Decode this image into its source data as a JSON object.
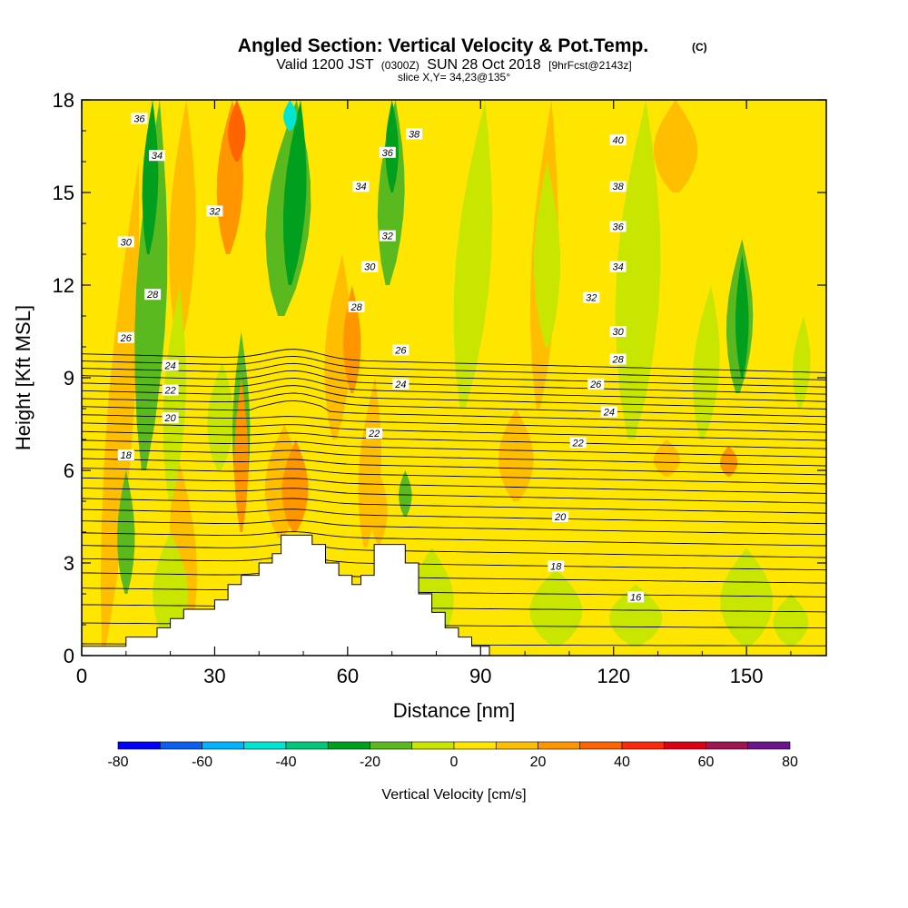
{
  "title": {
    "main": "Angled Section: Vertical Velocity & Pot.Temp.",
    "copyright": "(C)",
    "valid_prefix": "Valid 1200 JST",
    "valid_utc": "(0300Z)",
    "valid_date": "SUN 28 Oct 2018",
    "forecast": "[9hrFcst@2143z]",
    "slice": "slice X,Y= 34,23@135°"
  },
  "chart_data": {
    "type": "heatmap",
    "xlabel": "Distance [nm]",
    "ylabel": "Height [Kft MSL]",
    "xlim": [
      0,
      168
    ],
    "ylim": [
      0,
      18
    ],
    "x_ticks": [
      0,
      30,
      60,
      90,
      120,
      150
    ],
    "y_ticks": [
      0,
      3,
      6,
      9,
      12,
      15,
      18
    ],
    "colorbar": {
      "label": "Vertical Velocity [cm/s]",
      "ticks": [
        -80,
        -60,
        -40,
        -20,
        0,
        20,
        40,
        60,
        80
      ],
      "bins": [
        -80,
        -70,
        -60,
        -50,
        -40,
        -30,
        -20,
        -10,
        0,
        10,
        20,
        30,
        40,
        50,
        60,
        70,
        80
      ],
      "colors": [
        "#0000ff",
        "#0a5ef0",
        "#00b4ff",
        "#00e6d2",
        "#00c878",
        "#00a01e",
        "#5ab91e",
        "#c8e600",
        "#ffe600",
        "#ffbe00",
        "#ff9600",
        "#ff6400",
        "#ff280a",
        "#dc0014",
        "#a01450",
        "#6e148c"
      ]
    },
    "terrain_heights_kft": [
      [
        0,
        0.3
      ],
      [
        10,
        0.6
      ],
      [
        17,
        0.9
      ],
      [
        20,
        1.2
      ],
      [
        23,
        1.5
      ],
      [
        30,
        1.8
      ],
      [
        33,
        2.3
      ],
      [
        36,
        2.6
      ],
      [
        40,
        3.0
      ],
      [
        43,
        3.3
      ],
      [
        45,
        3.9
      ],
      [
        52,
        3.6
      ],
      [
        55,
        3.0
      ],
      [
        58,
        2.6
      ],
      [
        61,
        2.3
      ],
      [
        63,
        2.6
      ],
      [
        66,
        3.6
      ],
      [
        73,
        3.0
      ],
      [
        76,
        2.0
      ],
      [
        79,
        1.4
      ],
      [
        82,
        0.9
      ],
      [
        85,
        0.6
      ],
      [
        88,
        0.3
      ],
      [
        92,
        0.0
      ]
    ],
    "theta_labels": [
      {
        "value": "36",
        "x": 13,
        "y": 17.4
      },
      {
        "value": "34",
        "x": 17,
        "y": 16.2
      },
      {
        "value": "32",
        "x": 30,
        "y": 14.4
      },
      {
        "value": "30",
        "x": 10,
        "y": 13.4
      },
      {
        "value": "28",
        "x": 16,
        "y": 11.7
      },
      {
        "value": "26",
        "x": 10,
        "y": 10.3
      },
      {
        "value": "24",
        "x": 20,
        "y": 9.4
      },
      {
        "value": "22",
        "x": 20,
        "y": 8.6
      },
      {
        "value": "20",
        "x": 20,
        "y": 7.7
      },
      {
        "value": "18",
        "x": 10,
        "y": 6.5
      },
      {
        "value": "38",
        "x": 75,
        "y": 16.9
      },
      {
        "value": "36",
        "x": 69,
        "y": 16.3
      },
      {
        "value": "34",
        "x": 63,
        "y": 15.2
      },
      {
        "value": "32",
        "x": 69,
        "y": 13.6
      },
      {
        "value": "30",
        "x": 65,
        "y": 12.6
      },
      {
        "value": "28",
        "x": 62,
        "y": 11.3
      },
      {
        "value": "26",
        "x": 72,
        "y": 9.9
      },
      {
        "value": "24",
        "x": 72,
        "y": 8.8
      },
      {
        "value": "22",
        "x": 66,
        "y": 7.2
      },
      {
        "value": "40",
        "x": 121,
        "y": 16.7
      },
      {
        "value": "38",
        "x": 121,
        "y": 15.2
      },
      {
        "value": "36",
        "x": 121,
        "y": 13.9
      },
      {
        "value": "34",
        "x": 121,
        "y": 12.6
      },
      {
        "value": "32",
        "x": 115,
        "y": 11.6
      },
      {
        "value": "30",
        "x": 121,
        "y": 10.5
      },
      {
        "value": "28",
        "x": 121,
        "y": 9.6
      },
      {
        "value": "26",
        "x": 116,
        "y": 8.8
      },
      {
        "value": "24",
        "x": 119,
        "y": 7.9
      },
      {
        "value": "22",
        "x": 112,
        "y": 6.9
      },
      {
        "value": "20",
        "x": 108,
        "y": 4.5
      },
      {
        "value": "18",
        "x": 107,
        "y": 2.9
      },
      {
        "value": "16",
        "x": 125,
        "y": 1.9
      }
    ]
  }
}
